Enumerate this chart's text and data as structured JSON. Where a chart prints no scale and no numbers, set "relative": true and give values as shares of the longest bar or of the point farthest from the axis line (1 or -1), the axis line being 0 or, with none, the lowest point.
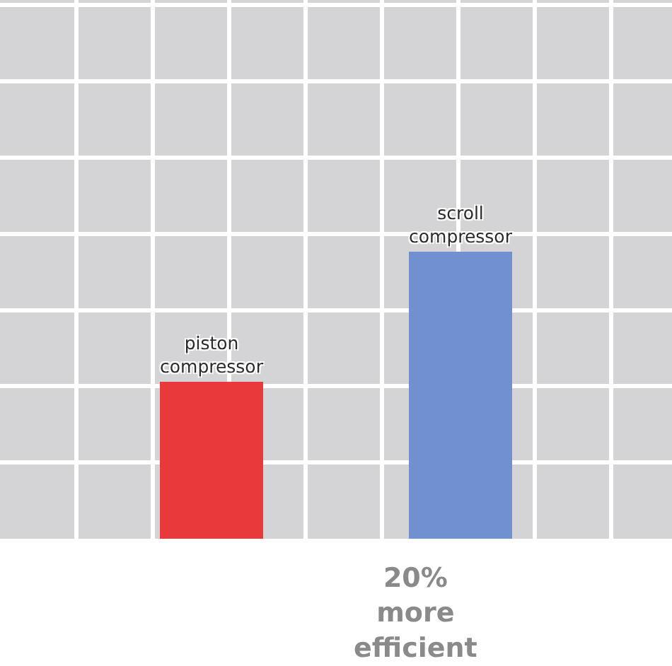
{
  "chart_data": {
    "type": "bar",
    "relative": true,
    "grid": true,
    "categories": [
      "piston\ncompressor",
      "scroll\ncompressor"
    ],
    "values": [
      0.55,
      1
    ],
    "colors": [
      "#e83a3a",
      "#7090cf"
    ],
    "annotations": [
      "20%\nmore\nefficient"
    ]
  }
}
